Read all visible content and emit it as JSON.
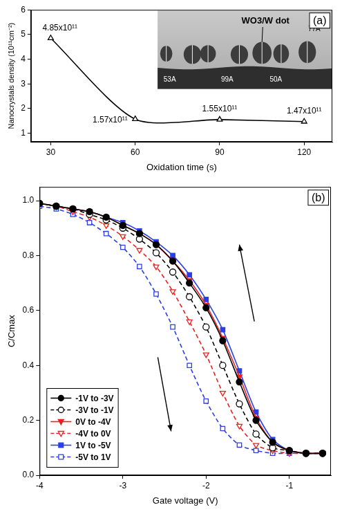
{
  "chart_data": [
    {
      "type": "line",
      "panel": "(a)",
      "x": [
        30,
        60,
        90,
        120
      ],
      "values": [
        4.85,
        1.57,
        1.55,
        1.47
      ],
      "value_labels": [
        "4.85x10¹¹",
        "1.57x10¹¹",
        "1.55x10¹¹",
        "1.47x10¹¹"
      ],
      "data_labels": true,
      "color": "#000000",
      "marker": "open_triangle",
      "line_style": "solid",
      "xlabel": "Oxidation time (s)",
      "ylabel": "Nanocrystals density (10¹¹cm⁻²)",
      "xlim": [
        23,
        130
      ],
      "xticks": [
        30,
        60,
        90,
        120
      ],
      "ylim": [
        0.65,
        6
      ],
      "yticks": [
        1,
        2,
        3,
        4,
        5,
        6
      ],
      "grid": false,
      "annotations": [
        "WO3/W dot",
        "53A",
        "99A",
        "50A",
        "77A"
      ]
    },
    {
      "type": "line",
      "panel": "(b)",
      "x": [
        -4,
        -3.8,
        -3.6,
        -3.4,
        -3.2,
        -3.0,
        -2.8,
        -2.6,
        -2.4,
        -2.2,
        -2.0,
        -1.8,
        -1.6,
        -1.4,
        -1.2,
        -1.0,
        -0.8,
        -0.6
      ],
      "series": [
        {
          "name": "-1V to -3V",
          "color": "#000000",
          "marker": "circle",
          "line_style": "solid",
          "values": [
            0.99,
            0.98,
            0.97,
            0.96,
            0.94,
            0.91,
            0.88,
            0.84,
            0.78,
            0.7,
            0.61,
            0.49,
            0.34,
            0.2,
            0.12,
            0.09,
            0.08,
            0.08
          ]
        },
        {
          "name": "-3V to -1V",
          "color": "#000000",
          "marker": "open_circle",
          "line_style": "dashed",
          "values": [
            0.99,
            0.98,
            0.97,
            0.95,
            0.93,
            0.9,
            0.86,
            0.81,
            0.74,
            0.65,
            0.54,
            0.4,
            0.26,
            0.15,
            0.1,
            0.09,
            0.08,
            0.08
          ]
        },
        {
          "name": "0V to -4V",
          "color": "#e8231f",
          "marker": "triangle_down",
          "line_style": "solid",
          "values": [
            0.99,
            0.98,
            0.97,
            0.96,
            0.94,
            0.91,
            0.88,
            0.84,
            0.78,
            0.71,
            0.62,
            0.5,
            0.36,
            0.21,
            0.12,
            0.09,
            0.08,
            0.08
          ]
        },
        {
          "name": "-4V to 0V",
          "color": "#e8231f",
          "marker": "open_triangle_down",
          "line_style": "dashed",
          "values": [
            0.99,
            0.98,
            0.96,
            0.94,
            0.91,
            0.87,
            0.82,
            0.76,
            0.67,
            0.56,
            0.44,
            0.3,
            0.18,
            0.11,
            0.09,
            0.08,
            0.08,
            0.08
          ]
        },
        {
          "name": "1V to -5V",
          "color": "#2a3fe8",
          "marker": "square",
          "line_style": "solid",
          "values": [
            0.99,
            0.98,
            0.97,
            0.96,
            0.94,
            0.92,
            0.89,
            0.85,
            0.8,
            0.73,
            0.64,
            0.53,
            0.38,
            0.23,
            0.13,
            0.09,
            0.08,
            0.08
          ]
        },
        {
          "name": "-5V to 1V",
          "color": "#2a3fe8",
          "marker": "open_square",
          "line_style": "dashed",
          "values": [
            0.98,
            0.97,
            0.95,
            0.92,
            0.88,
            0.83,
            0.76,
            0.66,
            0.54,
            0.4,
            0.27,
            0.17,
            0.11,
            0.09,
            0.08,
            0.08,
            0.08,
            0.08
          ]
        }
      ],
      "xlabel": "Gate voltage (V)",
      "ylabel": "C/Cmax",
      "xlim": [
        -4,
        -0.5
      ],
      "xticks": [
        -4,
        -3,
        -2,
        -1
      ],
      "ylim": [
        0,
        1.05
      ],
      "yticks": [
        {
          "value": 0,
          "label": "0.0"
        },
        0.2,
        0.4,
        0.6,
        0.8,
        {
          "value": 1,
          "label": "1.0"
        }
      ],
      "legend": "lower left",
      "grid": false
    }
  ]
}
